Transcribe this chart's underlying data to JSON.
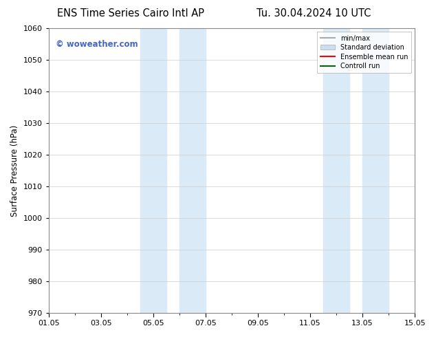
{
  "title_left": "ENS Time Series Cairo Intl AP",
  "title_right": "Tu. 30.04.2024 10 UTC",
  "ylabel": "Surface Pressure (hPa)",
  "ylim": [
    970,
    1060
  ],
  "yticks": [
    970,
    980,
    990,
    1000,
    1010,
    1020,
    1030,
    1040,
    1050,
    1060
  ],
  "xlim": [
    0,
    14
  ],
  "xtick_labels": [
    "01.05",
    "03.05",
    "05.05",
    "07.05",
    "09.05",
    "11.05",
    "13.05",
    "15.05"
  ],
  "xtick_positions": [
    0,
    2,
    4,
    6,
    8,
    10,
    12,
    14
  ],
  "shaded_bands": [
    {
      "x_start": 3.5,
      "x_end": 4.5,
      "color": "#daeaf7"
    },
    {
      "x_start": 5.0,
      "x_end": 6.0,
      "color": "#daeaf7"
    },
    {
      "x_start": 10.5,
      "x_end": 11.5,
      "color": "#daeaf7"
    },
    {
      "x_start": 12.0,
      "x_end": 13.0,
      "color": "#daeaf7"
    }
  ],
  "watermark_text": "© woweather.com",
  "watermark_color": "#4466cc",
  "background_color": "#ffffff",
  "grid_color": "#cccccc",
  "legend_items": [
    {
      "label": "min/max",
      "color": "#aaaaaa",
      "lw": 1.5,
      "style": "solid"
    },
    {
      "label": "Standard deviation",
      "color": "#ccddf0",
      "lw": 8,
      "style": "solid"
    },
    {
      "label": "Ensemble mean run",
      "color": "#ff0000",
      "lw": 1.5,
      "style": "solid"
    },
    {
      "label": "Controll run",
      "color": "#006600",
      "lw": 1.5,
      "style": "solid"
    }
  ],
  "title_fontsize": 10.5,
  "tick_fontsize": 8,
  "ylabel_fontsize": 8.5
}
